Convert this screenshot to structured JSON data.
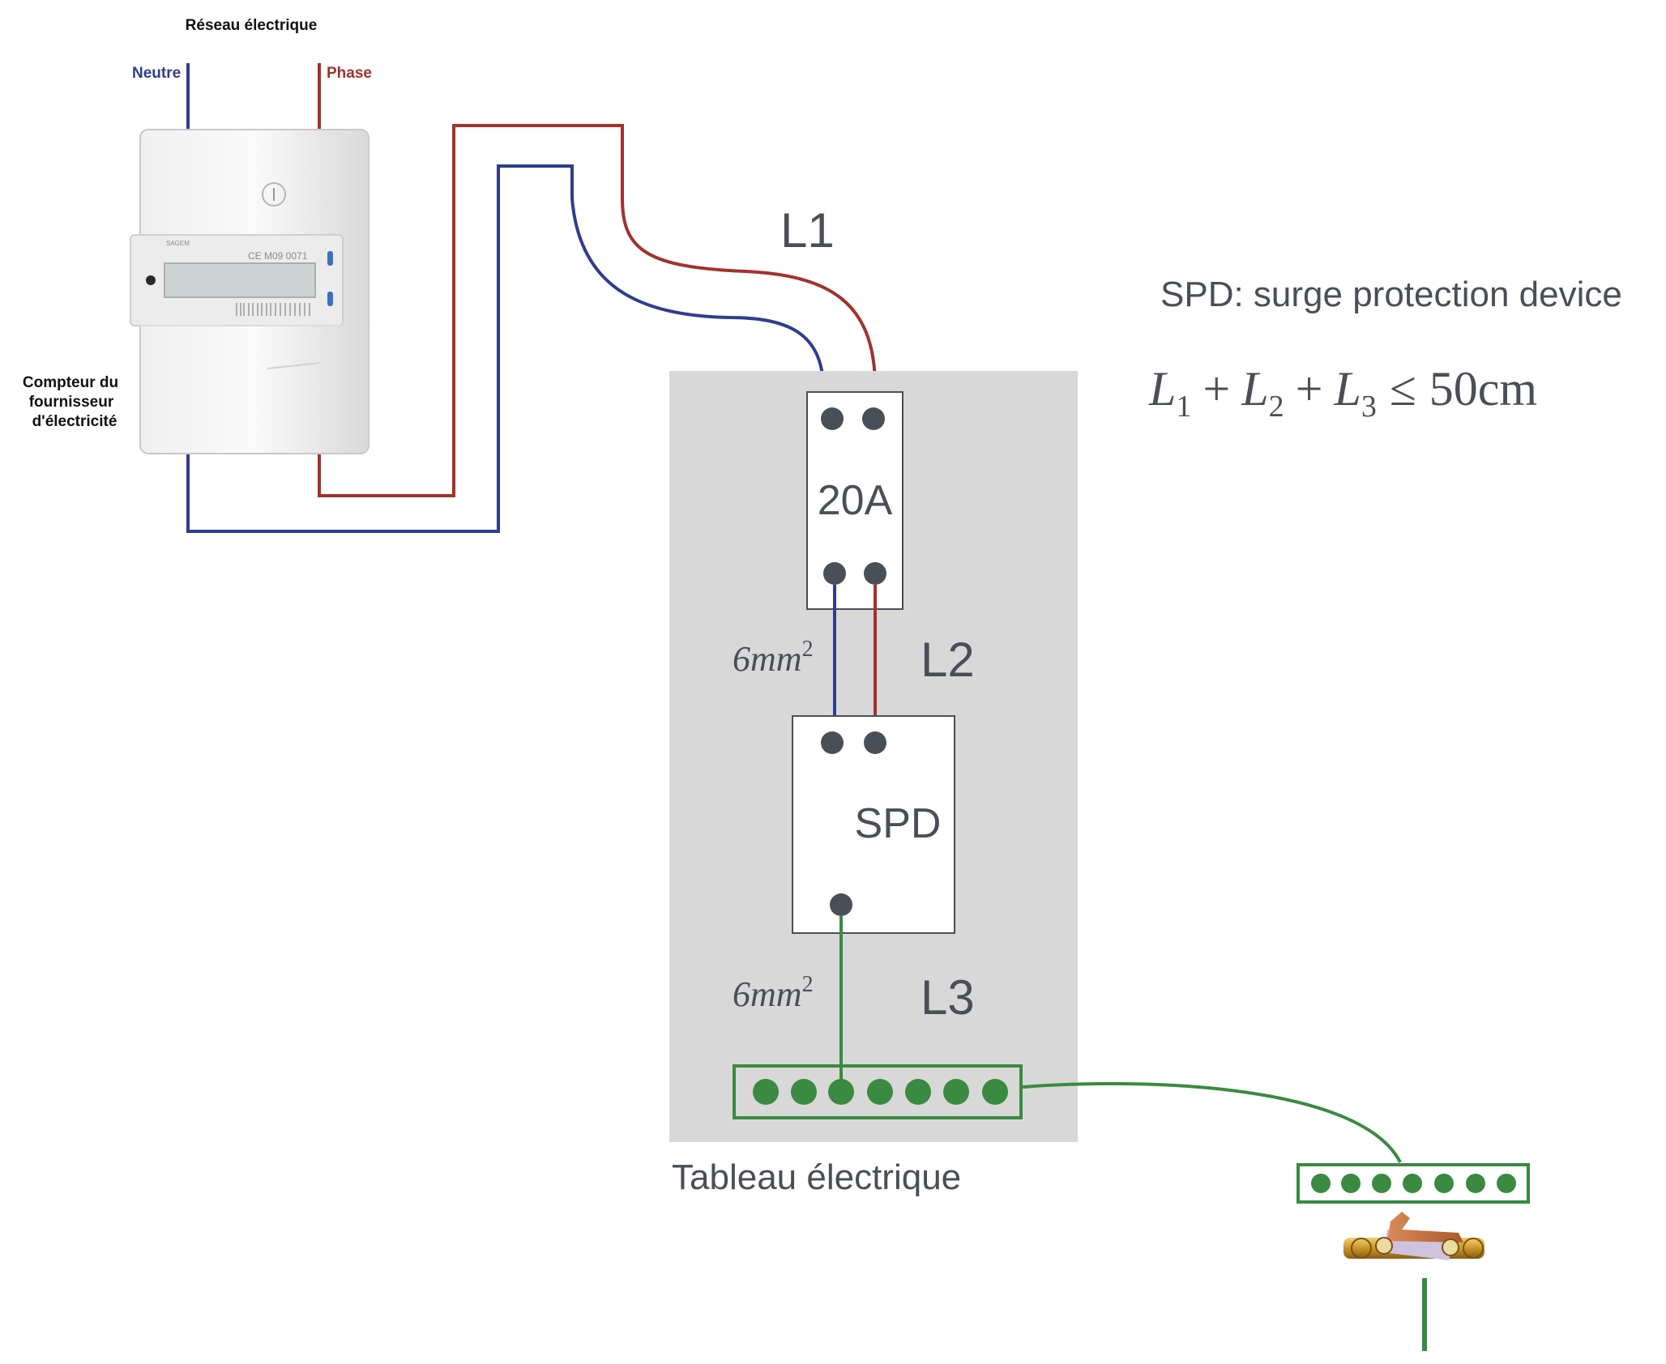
{
  "grid_label": "Réseau électrique",
  "neutral_label": "Neutre",
  "phase_label": "Phase",
  "meter_label_lines": [
    "Compteur du",
    "fournisseur",
    "d'électricité"
  ],
  "meter_display": {
    "brand": "SAGEM",
    "marking": "CE M09 0071"
  },
  "cable_labels": {
    "l1": "L1",
    "l2": "L2",
    "l3": "L3"
  },
  "section_label_2": "6mm",
  "section_label_3": "6mm",
  "section_exponent": "2",
  "breaker_label": "20A",
  "spd_label": "SPD",
  "panel_label": "Tableau électrique",
  "spd_definition": "SPD: surge protection device",
  "formula": {
    "l1": "L",
    "s1": "1",
    "l2": "L",
    "s2": "2",
    "l3": "L",
    "s3": "3",
    "plus": "+",
    "le": "≤",
    "limit": "50cm"
  },
  "colors": {
    "phase": "#a3312c",
    "neutral": "#2f3d8f",
    "earth": "#3a8a42",
    "panel": "#d8d8d8",
    "terminal": "#4a4f57"
  }
}
